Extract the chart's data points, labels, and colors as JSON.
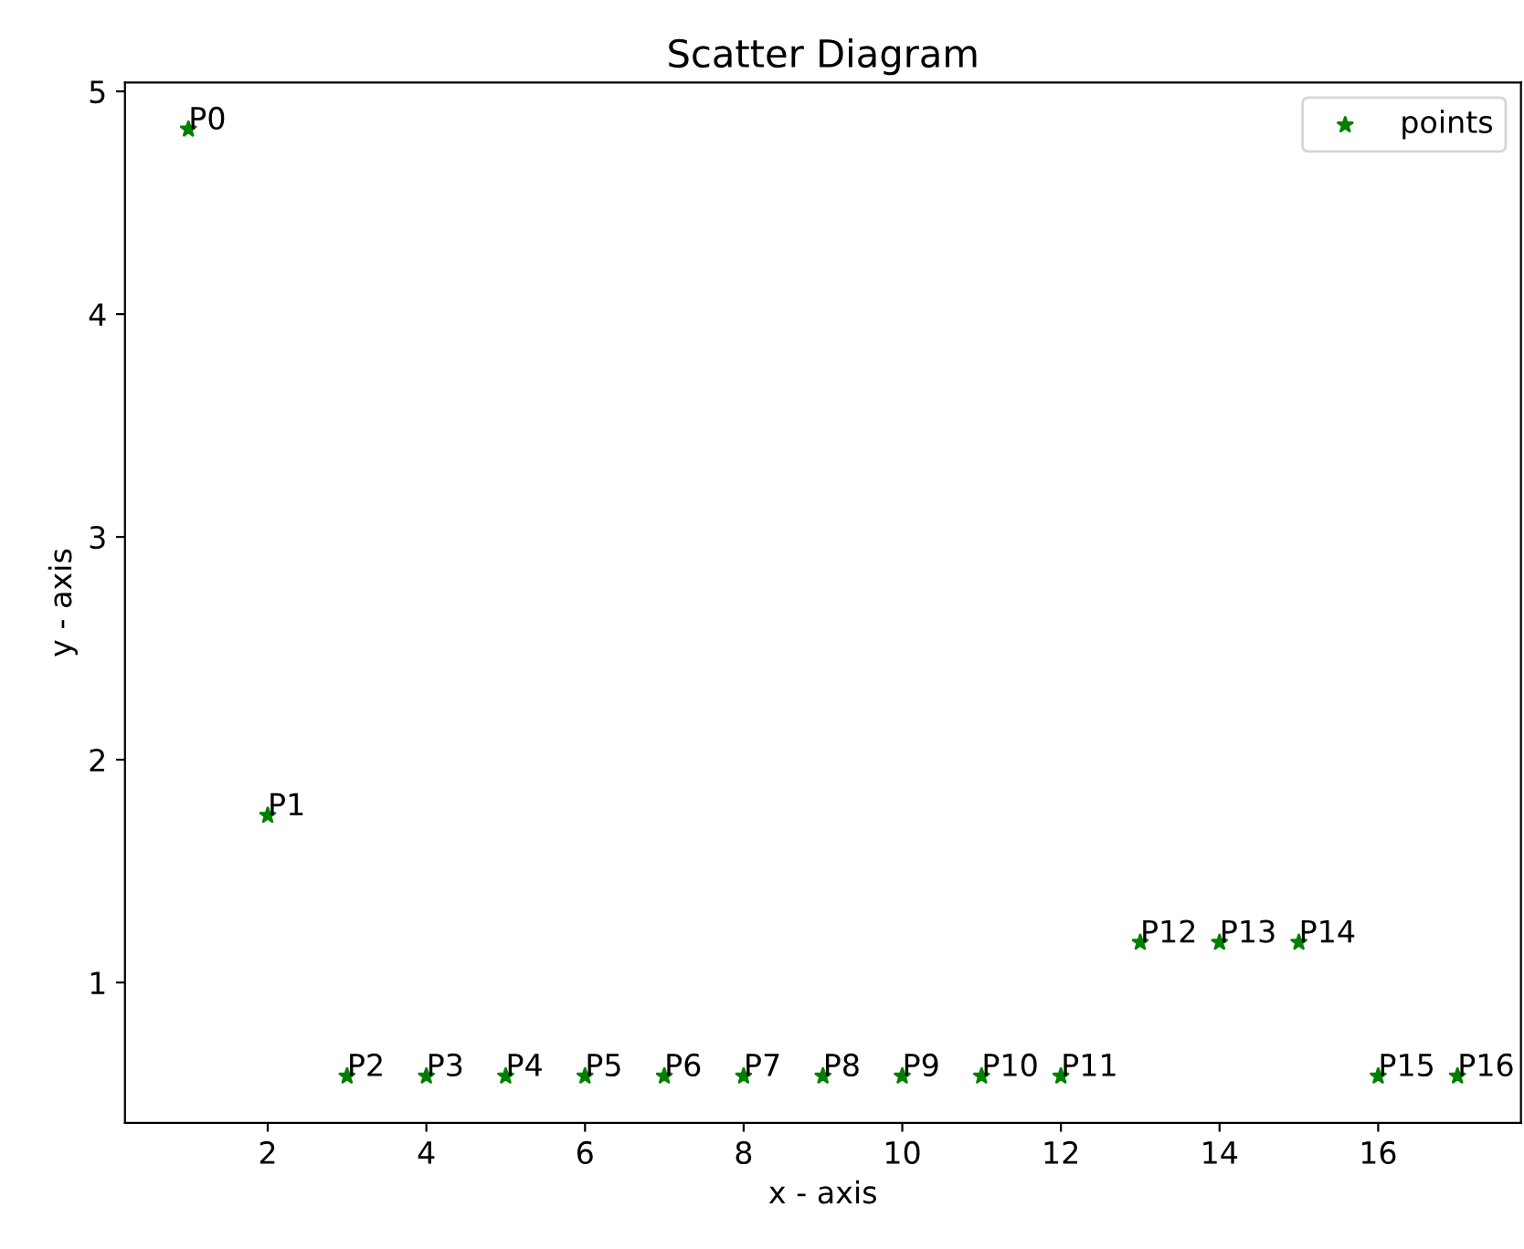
{
  "chart_data": {
    "type": "scatter",
    "title": "Scatter Diagram",
    "xlabel": "x - axis",
    "ylabel": "y - axis",
    "x": [
      1,
      2,
      3,
      4,
      5,
      6,
      7,
      8,
      9,
      10,
      11,
      12,
      13,
      14,
      15,
      16,
      17
    ],
    "series": [
      {
        "name": "points",
        "color": "#008000",
        "values": [
          4.83,
          1.75,
          0.58,
          0.58,
          0.58,
          0.58,
          0.58,
          0.58,
          0.58,
          0.58,
          0.58,
          0.58,
          1.18,
          1.18,
          1.18,
          0.58,
          0.58
        ]
      }
    ],
    "annotations": [
      {
        "text": "P0",
        "x": 1,
        "y": 4.83
      },
      {
        "text": "P1",
        "x": 2,
        "y": 1.75
      },
      {
        "text": "P2",
        "x": 3,
        "y": 0.58
      },
      {
        "text": "P3",
        "x": 4,
        "y": 0.58
      },
      {
        "text": "P4",
        "x": 5,
        "y": 0.58
      },
      {
        "text": "P5",
        "x": 6,
        "y": 0.58
      },
      {
        "text": "P6",
        "x": 7,
        "y": 0.58
      },
      {
        "text": "P7",
        "x": 8,
        "y": 0.58
      },
      {
        "text": "P8",
        "x": 9,
        "y": 0.58
      },
      {
        "text": "P9",
        "x": 10,
        "y": 0.58
      },
      {
        "text": "P10",
        "x": 11,
        "y": 0.58
      },
      {
        "text": "P11",
        "x": 12,
        "y": 0.58
      },
      {
        "text": "P12",
        "x": 13,
        "y": 1.18
      },
      {
        "text": "P13",
        "x": 14,
        "y": 1.18
      },
      {
        "text": "P14",
        "x": 15,
        "y": 1.18
      },
      {
        "text": "P15",
        "x": 16,
        "y": 0.58
      },
      {
        "text": "P16",
        "x": 17,
        "y": 0.58
      }
    ],
    "xlim": [
      0.2,
      17.8
    ],
    "xticks": [
      2,
      4,
      6,
      8,
      10,
      12,
      14,
      16
    ],
    "ylim": [
      0.37,
      5.04
    ],
    "yticks": [
      1,
      2,
      3,
      4,
      5
    ],
    "marker": "star",
    "legend": "top right",
    "grid": false
  }
}
